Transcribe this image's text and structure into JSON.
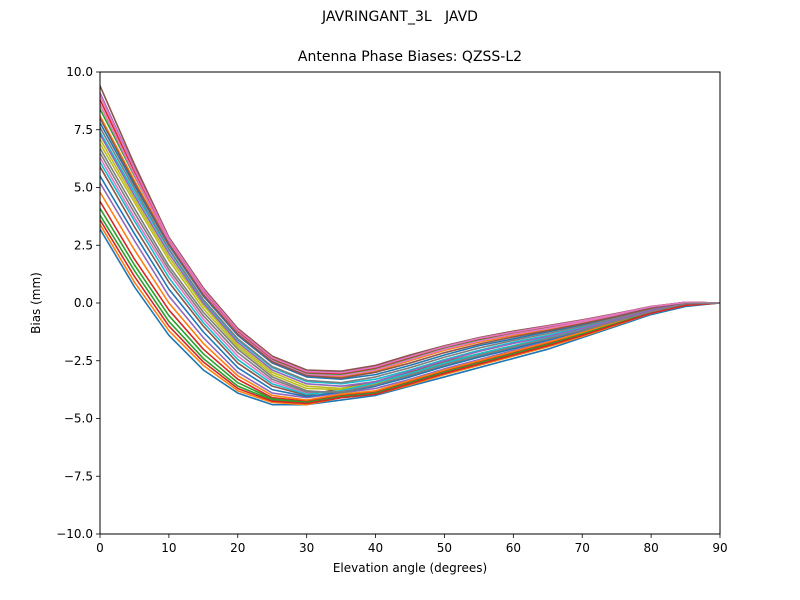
{
  "figure": {
    "suptitle": "JAVRINGANT_3L   JAVD"
  },
  "chart_data": {
    "type": "line",
    "title": "Antenna Phase Biases: QZSS-L2",
    "xlabel": "Elevation angle (degrees)",
    "ylabel": "Bias (mm)",
    "xlim": [
      0,
      90
    ],
    "ylim": [
      -10,
      10
    ],
    "x": [
      0,
      5,
      10,
      15,
      20,
      25,
      30,
      35,
      40,
      45,
      50,
      55,
      60,
      65,
      70,
      75,
      80,
      85,
      90
    ],
    "xticks": [
      "0",
      "10",
      "20",
      "30",
      "40",
      "50",
      "60",
      "70",
      "80",
      "90"
    ],
    "yticks": [
      "−10.0",
      "−7.5",
      "−5.0",
      "−2.5",
      "0.0",
      "2.5",
      "5.0",
      "7.5",
      "10.0"
    ],
    "grid": false,
    "legend": "none",
    "series_colors": [
      "#1f77b4",
      "#ff7f0e",
      "#2ca02c",
      "#d62728",
      "#9467bd",
      "#8c564b",
      "#e377c2",
      "#7f7f7f",
      "#bcbd22",
      "#17becf"
    ],
    "series": [
      {
        "values": [
          3.2,
          0.7,
          -1.4,
          -2.9,
          -3.9,
          -4.4,
          -4.4,
          -4.2,
          -4.0,
          -3.6,
          -3.2,
          -2.8,
          -2.4,
          -2.0,
          -1.5,
          -1.0,
          -0.5,
          -0.15,
          0.0
        ]
      },
      {
        "values": [
          3.4,
          0.9,
          -1.2,
          -2.7,
          -3.8,
          -4.3,
          -4.4,
          -4.1,
          -3.95,
          -3.55,
          -3.1,
          -2.7,
          -2.3,
          -1.9,
          -1.45,
          -0.95,
          -0.45,
          -0.1,
          0.0
        ]
      },
      {
        "values": [
          3.8,
          1.4,
          -0.8,
          -2.4,
          -3.6,
          -4.2,
          -4.3,
          -4.05,
          -3.9,
          -3.45,
          -3.0,
          -2.6,
          -2.2,
          -1.8,
          -1.35,
          -0.9,
          -0.4,
          -0.08,
          0.0
        ]
      },
      {
        "values": [
          4.4,
          1.9,
          -0.3,
          -2.0,
          -3.3,
          -4.1,
          -4.25,
          -4.0,
          -3.85,
          -3.4,
          -2.95,
          -2.55,
          -2.15,
          -1.75,
          -1.3,
          -0.85,
          -0.4,
          -0.05,
          0.0
        ]
      },
      {
        "values": [
          5.2,
          2.7,
          0.3,
          -1.5,
          -3.0,
          -3.9,
          -4.1,
          -3.9,
          -3.7,
          -3.3,
          -2.85,
          -2.45,
          -2.05,
          -1.65,
          -1.25,
          -0.8,
          -0.35,
          -0.05,
          0.0
        ]
      },
      {
        "values": [
          5.9,
          3.3,
          0.9,
          -1.0,
          -2.6,
          -3.6,
          -4.0,
          -3.7,
          -3.4,
          -3.0,
          -2.55,
          -2.2,
          -1.85,
          -1.5,
          -1.15,
          -0.75,
          -0.3,
          0.0,
          0.0
        ]
      },
      {
        "values": [
          6.3,
          3.7,
          1.3,
          -0.7,
          -2.3,
          -3.4,
          -3.9,
          -3.85,
          -3.5,
          -3.1,
          -2.65,
          -2.25,
          -1.9,
          -1.55,
          -1.2,
          -0.8,
          -0.4,
          -0.05,
          0.0
        ]
      },
      {
        "values": [
          6.7,
          4.1,
          1.6,
          -0.4,
          -2.0,
          -3.2,
          -3.8,
          -3.9,
          -3.6,
          -3.15,
          -2.7,
          -2.3,
          -1.95,
          -1.6,
          -1.2,
          -0.8,
          -0.4,
          -0.05,
          0.0
        ]
      },
      {
        "values": [
          7.1,
          4.5,
          2.0,
          -0.1,
          -1.8,
          -3.0,
          -3.6,
          -3.7,
          -3.5,
          -3.05,
          -2.6,
          -2.2,
          -1.85,
          -1.5,
          -1.15,
          -0.75,
          -0.35,
          0.0,
          0.0
        ]
      },
      {
        "values": [
          7.4,
          4.8,
          2.3,
          0.1,
          -1.6,
          -2.8,
          -3.4,
          -3.5,
          -3.3,
          -2.9,
          -2.45,
          -2.05,
          -1.7,
          -1.4,
          -1.05,
          -0.7,
          -0.3,
          0.0,
          0.0
        ]
      },
      {
        "values": [
          7.8,
          5.1,
          2.5,
          0.3,
          -1.4,
          -2.6,
          -3.2,
          -3.3,
          -3.1,
          -2.7,
          -2.25,
          -1.85,
          -1.55,
          -1.25,
          -0.95,
          -0.6,
          -0.25,
          0.02,
          0.0
        ]
      },
      {
        "values": [
          8.1,
          5.3,
          2.6,
          0.4,
          -1.3,
          -2.5,
          -3.1,
          -3.2,
          -2.95,
          -2.5,
          -2.05,
          -1.7,
          -1.4,
          -1.15,
          -0.85,
          -0.55,
          -0.2,
          0.03,
          0.0
        ]
      },
      {
        "values": [
          8.4,
          5.5,
          2.7,
          0.5,
          -1.25,
          -2.45,
          -3.05,
          -3.1,
          -2.85,
          -2.4,
          -1.95,
          -1.6,
          -1.3,
          -1.05,
          -0.8,
          -0.5,
          -0.18,
          0.03,
          0.0
        ]
      },
      {
        "values": [
          8.8,
          5.7,
          2.75,
          0.55,
          -1.2,
          -2.4,
          -3.0,
          -3.05,
          -2.8,
          -2.35,
          -1.9,
          -1.55,
          -1.27,
          -1.02,
          -0.77,
          -0.48,
          -0.17,
          0.03,
          0.0
        ]
      },
      {
        "values": [
          9.1,
          5.85,
          2.8,
          0.6,
          -1.15,
          -2.35,
          -2.95,
          -3.0,
          -2.75,
          -2.3,
          -1.88,
          -1.52,
          -1.25,
          -1.0,
          -0.75,
          -0.46,
          -0.16,
          0.03,
          0.0
        ]
      },
      {
        "values": [
          9.4,
          6.0,
          2.85,
          0.65,
          -1.1,
          -2.3,
          -2.9,
          -2.95,
          -2.7,
          -2.25,
          -1.85,
          -1.5,
          -1.22,
          -0.98,
          -0.73,
          -0.45,
          -0.15,
          0.03,
          0.0
        ]
      },
      {
        "values": [
          8.6,
          5.55,
          2.65,
          0.45,
          -1.3,
          -2.5,
          -3.1,
          -3.15,
          -2.9,
          -2.45,
          -2.0,
          -1.65,
          -1.35,
          -1.1,
          -0.82,
          -0.52,
          -0.2,
          0.02,
          0.0
        ]
      },
      {
        "values": [
          7.6,
          4.95,
          2.35,
          0.15,
          -1.55,
          -2.75,
          -3.35,
          -3.45,
          -3.2,
          -2.8,
          -2.35,
          -1.95,
          -1.62,
          -1.32,
          -1.0,
          -0.65,
          -0.28,
          0.01,
          0.0
        ]
      },
      {
        "values": [
          6.9,
          4.35,
          1.85,
          -0.25,
          -1.9,
          -3.1,
          -3.7,
          -3.75,
          -3.45,
          -3.05,
          -2.6,
          -2.2,
          -1.85,
          -1.5,
          -1.15,
          -0.75,
          -0.35,
          0.0,
          0.0
        ]
      },
      {
        "values": [
          6.1,
          3.55,
          1.1,
          -0.85,
          -2.45,
          -3.5,
          -3.95,
          -3.8,
          -3.45,
          -3.05,
          -2.6,
          -2.2,
          -1.85,
          -1.5,
          -1.15,
          -0.75,
          -0.33,
          0.0,
          0.0
        ]
      },
      {
        "values": [
          5.5,
          3.0,
          0.6,
          -1.25,
          -2.8,
          -3.75,
          -4.05,
          -3.85,
          -3.6,
          -3.2,
          -2.75,
          -2.35,
          -1.98,
          -1.6,
          -1.2,
          -0.78,
          -0.35,
          -0.03,
          0.0
        ]
      },
      {
        "values": [
          4.8,
          2.3,
          0.0,
          -1.75,
          -3.15,
          -4.0,
          -4.2,
          -3.95,
          -3.8,
          -3.35,
          -2.9,
          -2.5,
          -2.1,
          -1.7,
          -1.28,
          -0.83,
          -0.38,
          -0.05,
          0.0
        ]
      },
      {
        "values": [
          4.1,
          1.65,
          -0.55,
          -2.2,
          -3.45,
          -4.15,
          -4.3,
          -4.05,
          -3.9,
          -3.45,
          -3.0,
          -2.6,
          -2.2,
          -1.8,
          -1.35,
          -0.88,
          -0.42,
          -0.08,
          0.0
        ]
      },
      {
        "values": [
          3.6,
          1.15,
          -1.0,
          -2.55,
          -3.7,
          -4.25,
          -4.35,
          -4.1,
          -3.95,
          -3.5,
          -3.05,
          -2.65,
          -2.25,
          -1.85,
          -1.4,
          -0.92,
          -0.44,
          -0.1,
          0.0
        ]
      },
      {
        "values": [
          7.3,
          4.65,
          2.15,
          0.0,
          -1.7,
          -2.9,
          -3.5,
          -3.6,
          -3.4,
          -2.95,
          -2.5,
          -2.1,
          -1.75,
          -1.45,
          -1.1,
          -0.72,
          -0.32,
          0.0,
          0.0
        ]
      },
      {
        "values": [
          8.0,
          5.2,
          2.55,
          0.35,
          -1.35,
          -2.55,
          -3.15,
          -3.25,
          -3.0,
          -2.6,
          -2.15,
          -1.78,
          -1.47,
          -1.2,
          -0.9,
          -0.58,
          -0.22,
          0.02,
          0.0
        ]
      },
      {
        "values": [
          9.0,
          5.8,
          2.78,
          0.58,
          -1.17,
          -2.37,
          -2.97,
          -3.02,
          -2.77,
          -2.32,
          -1.89,
          -1.53,
          -1.26,
          -1.01,
          -0.76,
          -0.47,
          -0.16,
          0.03,
          0.0
        ]
      },
      {
        "values": [
          6.5,
          3.9,
          1.45,
          -0.55,
          -2.15,
          -3.3,
          -3.85,
          -3.85,
          -3.55,
          -3.12,
          -2.67,
          -2.27,
          -1.9,
          -1.55,
          -1.18,
          -0.78,
          -0.38,
          -0.03,
          0.0
        ]
      }
    ]
  }
}
